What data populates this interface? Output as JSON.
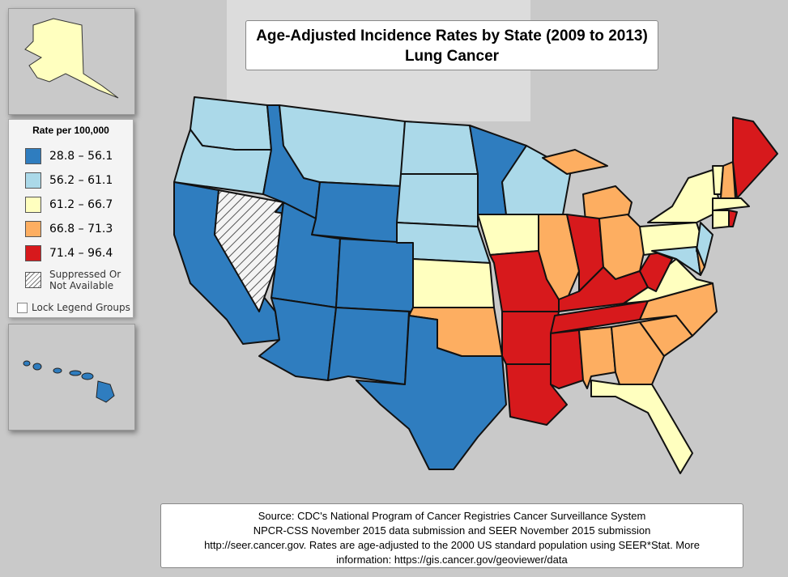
{
  "title": {
    "line1": "Age-Adjusted Incidence Rates by State (2009 to 2013)",
    "line2": "Lung Cancer"
  },
  "legend": {
    "title": "Rate per 100,000",
    "classes": [
      {
        "label": "28.8 – 56.1",
        "color": "#2f7dbf"
      },
      {
        "label": "56.2 – 61.1",
        "color": "#abd9e9"
      },
      {
        "label": "61.2 – 66.7",
        "color": "#ffffbf"
      },
      {
        "label": "66.8 – 71.3",
        "color": "#fdae61"
      },
      {
        "label": "71.4 – 96.4",
        "color": "#d7191c"
      }
    ],
    "suppressed_label1": "Suppressed Or",
    "suppressed_label2": "Not Available",
    "lock_label": "Lock Legend Groups"
  },
  "source": {
    "line1": "Source: CDC's National Program of Cancer Registries Cancer Surveillance System",
    "line2": "NPCR-CSS November 2015 data submission and SEER November 2015 submission",
    "line3": "http://seer.cancer.gov. Rates are age-adjusted to the 2000 US standard population using SEER*Stat.  More",
    "line4": "information: https://gis.cancer.gov/geoviewer/data"
  },
  "state_classes": {
    "WA": 1,
    "OR": 1,
    "CA": 0,
    "NV": "na",
    "ID": 0,
    "MT": 1,
    "WY": 0,
    "UT": 0,
    "CO": 0,
    "AZ": 0,
    "NM": 0,
    "ND": 1,
    "SD": 1,
    "NE": 1,
    "KS": 2,
    "OK": 3,
    "TX": 0,
    "MN": 0,
    "IA": 2,
    "MO": 4,
    "AR": 4,
    "LA": 4,
    "WI": 1,
    "IL": 3,
    "MI": 3,
    "MIU": 3,
    "IN": 4,
    "OH": 3,
    "KY": 4,
    "TN": 4,
    "MS": 4,
    "AL": 3,
    "GA": 3,
    "FL": 2,
    "SC": 3,
    "NC": 3,
    "VA": 2,
    "WV": 4,
    "PA": 2,
    "NY": 2,
    "MD": 1,
    "NJ": 1,
    "DE": 3,
    "VT": 2,
    "NH": 3,
    "ME": 4,
    "MA": 2,
    "CT": 2,
    "RI": 4,
    "AK": 2,
    "HI": 0
  }
}
